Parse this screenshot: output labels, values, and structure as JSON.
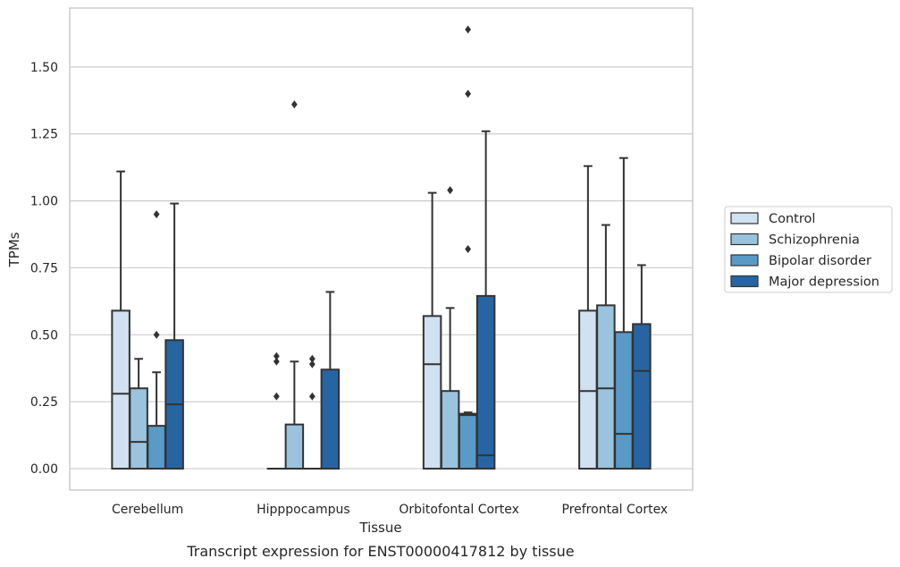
{
  "chart_data": {
    "type": "box",
    "title": "",
    "caption": "Transcript expression for ENST00000417812 by tissue",
    "xlabel": "Tissue",
    "ylabel": "TPMs",
    "ylim": [
      -0.08,
      1.72
    ],
    "yticks": [
      0.0,
      0.25,
      0.5,
      0.75,
      1.0,
      1.25,
      1.5
    ],
    "ytick_labels": [
      "0.00",
      "0.25",
      "0.50",
      "0.75",
      "1.00",
      "1.25",
      "1.50"
    ],
    "grid": "horizontal",
    "legend_position": "right",
    "categories": [
      "Cerebellum",
      "Hipppocampus",
      "Orbitofontal Cortex",
      "Prefrontal Cortex"
    ],
    "series": [
      {
        "name": "Control",
        "color": "#d0e1f1",
        "boxes": [
          {
            "q1": 0.0,
            "median": 0.28,
            "q3": 0.59,
            "whisker_low": 0.0,
            "whisker_high": 1.11,
            "outliers": []
          },
          {
            "q1": 0.0,
            "median": 0.0,
            "q3": 0.0,
            "whisker_low": 0.0,
            "whisker_high": 0.0,
            "outliers": [
              0.27,
              0.4,
              0.42
            ]
          },
          {
            "q1": 0.0,
            "median": 0.39,
            "q3": 0.57,
            "whisker_low": 0.0,
            "whisker_high": 1.03,
            "outliers": []
          },
          {
            "q1": 0.0,
            "median": 0.29,
            "q3": 0.59,
            "whisker_low": 0.0,
            "whisker_high": 1.13,
            "outliers": []
          }
        ]
      },
      {
        "name": "Schizophrenia",
        "color": "#9ac3dd",
        "boxes": [
          {
            "q1": 0.0,
            "median": 0.1,
            "q3": 0.3,
            "whisker_low": 0.0,
            "whisker_high": 0.41,
            "outliers": []
          },
          {
            "q1": 0.0,
            "median": 0.0,
            "q3": 0.165,
            "whisker_low": 0.0,
            "whisker_high": 0.4,
            "outliers": [
              1.36
            ]
          },
          {
            "q1": 0.0,
            "median": 0.0,
            "q3": 0.29,
            "whisker_low": 0.0,
            "whisker_high": 0.6,
            "outliers": [
              1.04
            ]
          },
          {
            "q1": 0.0,
            "median": 0.3,
            "q3": 0.61,
            "whisker_low": 0.0,
            "whisker_high": 0.91,
            "outliers": []
          }
        ]
      },
      {
        "name": "Bipolar disorder",
        "color": "#5a9ac7",
        "boxes": [
          {
            "q1": 0.0,
            "median": 0.0,
            "q3": 0.16,
            "whisker_low": 0.0,
            "whisker_high": 0.36,
            "outliers": [
              0.5,
              0.95
            ]
          },
          {
            "q1": 0.0,
            "median": 0.0,
            "q3": 0.0,
            "whisker_low": 0.0,
            "whisker_high": 0.0,
            "outliers": [
              0.27,
              0.39,
              0.41
            ]
          },
          {
            "q1": 0.0,
            "median": 0.2,
            "q3": 0.205,
            "whisker_low": 0.0,
            "whisker_high": 0.21,
            "outliers": [
              0.82,
              1.4,
              1.64
            ]
          },
          {
            "q1": 0.0,
            "median": 0.13,
            "q3": 0.51,
            "whisker_low": 0.0,
            "whisker_high": 1.16,
            "outliers": []
          }
        ]
      },
      {
        "name": "Major depression",
        "color": "#2764a2",
        "boxes": [
          {
            "q1": 0.0,
            "median": 0.24,
            "q3": 0.48,
            "whisker_low": 0.0,
            "whisker_high": 0.99,
            "outliers": []
          },
          {
            "q1": 0.0,
            "median": 0.0,
            "q3": 0.37,
            "whisker_low": 0.0,
            "whisker_high": 0.66,
            "outliers": []
          },
          {
            "q1": 0.0,
            "median": 0.05,
            "q3": 0.645,
            "whisker_low": 0.0,
            "whisker_high": 1.26,
            "outliers": []
          },
          {
            "q1": 0.0,
            "median": 0.365,
            "q3": 0.54,
            "whisker_low": 0.0,
            "whisker_high": 0.76,
            "outliers": []
          }
        ]
      }
    ]
  }
}
